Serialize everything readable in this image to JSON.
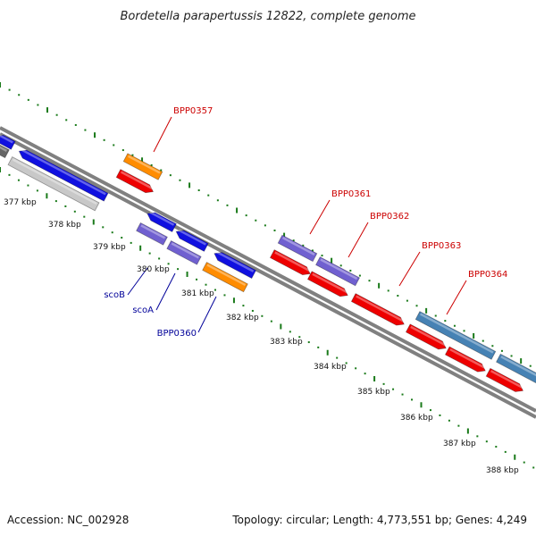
{
  "title": "Bordetella parapertussis 12822, complete genome",
  "footer": {
    "accession": "Accession: NC_002928",
    "summary": "Topology: circular; Length: 4,773,551 bp; Genes: 4,249"
  },
  "colors": {
    "backbone": "#808080",
    "ticks": "#1a7a1a",
    "label_red": "#cc0000",
    "label_blue": "#000099"
  },
  "scale_ticks": [
    "377 kbp",
    "378 kbp",
    "379 kbp",
    "380 kbp",
    "381 kbp",
    "382 kbp",
    "383 kbp",
    "384 kbp",
    "385 kbp",
    "386 kbp",
    "387 kbp",
    "388 kbp"
  ],
  "gene_labels": [
    {
      "name": "BPP0357",
      "color": "red"
    },
    {
      "name": "BPP0361",
      "color": "red"
    },
    {
      "name": "BPP0362",
      "color": "red"
    },
    {
      "name": "BPP0363",
      "color": "red"
    },
    {
      "name": "BPP0364",
      "color": "red"
    },
    {
      "name": "scoB",
      "color": "blue"
    },
    {
      "name": "scoA",
      "color": "blue"
    },
    {
      "name": "BPP0360",
      "color": "blue"
    }
  ]
}
